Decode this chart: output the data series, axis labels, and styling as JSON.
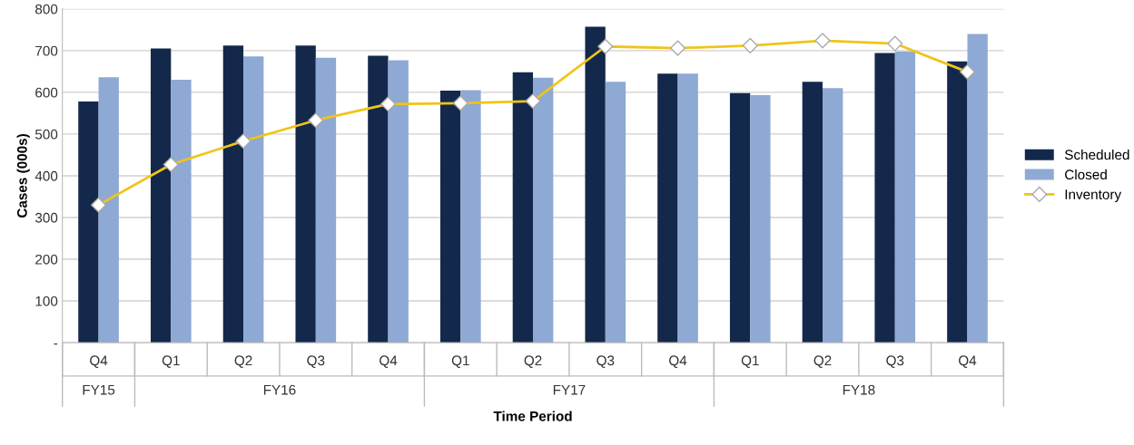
{
  "chart_data": {
    "type": "bar",
    "xlabel": "Time Period",
    "ylabel": "Cases (000s)",
    "categories": [
      "Q4",
      "Q1",
      "Q2",
      "Q3",
      "Q4",
      "Q1",
      "Q2",
      "Q3",
      "Q4",
      "Q1",
      "Q2",
      "Q3",
      "Q4"
    ],
    "series": [
      {
        "name": "Scheduled",
        "color": "#13284a",
        "values": [
          578,
          705,
          712,
          712,
          688,
          604,
          648,
          757,
          645,
          598,
          625,
          694,
          674
        ]
      },
      {
        "name": "Closed",
        "color": "#8ea9d3",
        "values": [
          636,
          630,
          686,
          683,
          677,
          605,
          635,
          625,
          645,
          593,
          610,
          698,
          740
        ]
      },
      {
        "name": "Inventory",
        "type": "line",
        "color": "#f0c419",
        "marker": "diamond",
        "values": [
          330,
          427,
          483,
          533,
          572,
          574,
          579,
          710,
          706,
          712,
          724,
          717,
          649
        ]
      }
    ],
    "annotations": [
      "FY15",
      "FY16",
      "FY17",
      "FY18"
    ],
    "ylim": [
      0,
      800
    ],
    "yticks": [
      {
        "value": 0,
        "label": "-"
      },
      100,
      200,
      300,
      400,
      500,
      600,
      700,
      800
    ],
    "grid": "y",
    "legend": "right"
  }
}
